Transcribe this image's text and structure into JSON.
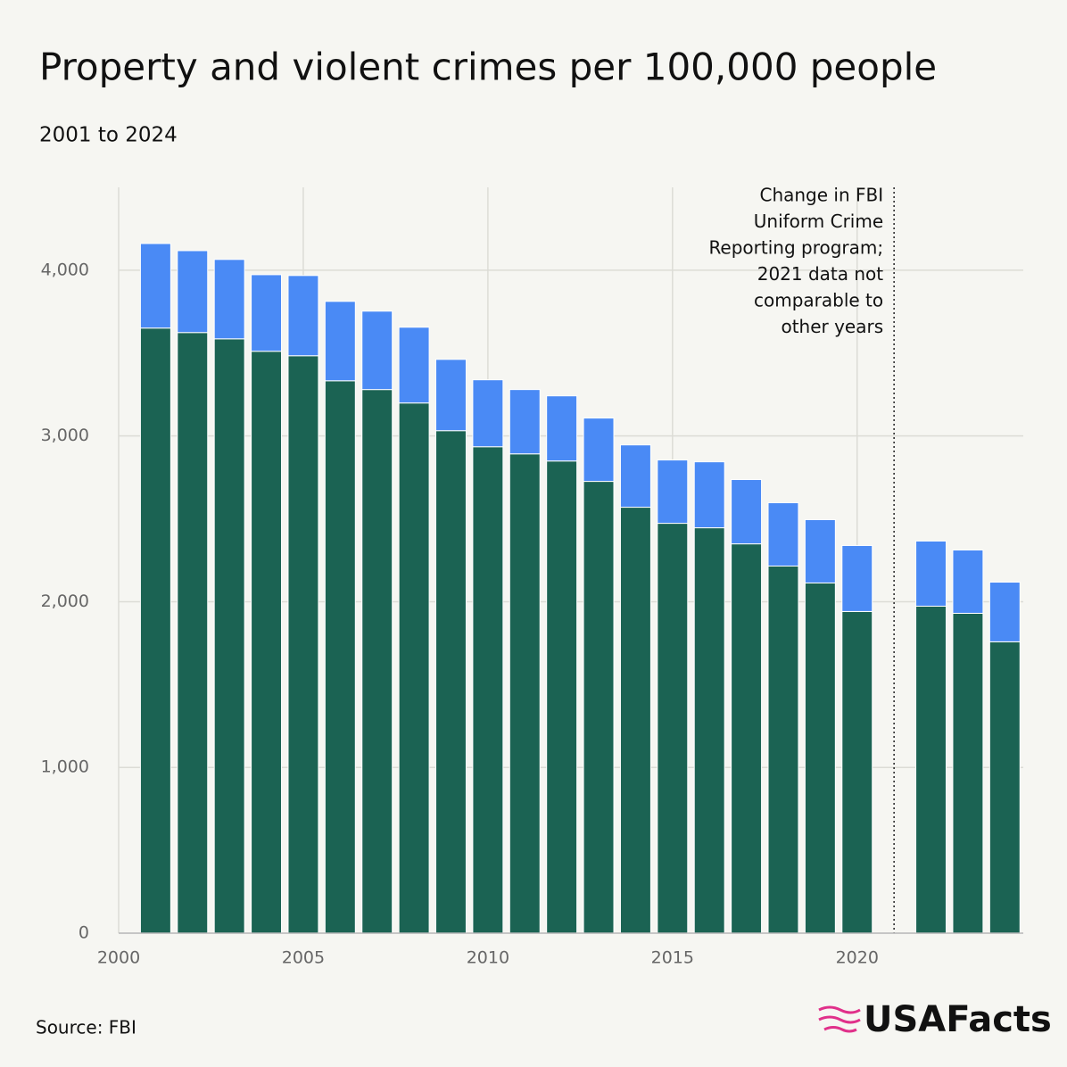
{
  "chart_data": {
    "type": "stacked-bar",
    "title": "Property and violent crimes per 100,000 people",
    "subtitle": "2001 to 2024",
    "x": [
      2001,
      2002,
      2003,
      2004,
      2005,
      2006,
      2007,
      2008,
      2009,
      2010,
      2011,
      2012,
      2013,
      2014,
      2015,
      2016,
      2017,
      2018,
      2019,
      2020,
      2021,
      2022,
      2023,
      2024
    ],
    "series": [
      {
        "color": "#1b6353",
        "values": [
          3651,
          3624,
          3586,
          3511,
          3484,
          3333,
          3280,
          3199,
          3032,
          2935,
          2892,
          2849,
          2726,
          2570,
          2473,
          2446,
          2349,
          2215,
          2113,
          1941,
          null,
          1973,
          1930,
          1758
        ]
      },
      {
        "color": "#4a8af5",
        "values": [
          510,
          494,
          479,
          462,
          484,
          479,
          473,
          457,
          430,
          404,
          388,
          393,
          382,
          376,
          382,
          398,
          388,
          382,
          382,
          398,
          null,
          393,
          382,
          360
        ]
      }
    ],
    "xlim": [
      2000,
      2024.5
    ],
    "xticks": [
      2000,
      2005,
      2010,
      2015,
      2020
    ],
    "ylim": [
      0,
      4500
    ],
    "yticks": [
      0,
      {
        "value": 1000,
        "label": "1,000"
      },
      {
        "value": 2000,
        "label": "2,000"
      },
      {
        "value": 3000,
        "label": "3,000"
      },
      {
        "value": 4000,
        "label": "4,000"
      }
    ],
    "grid": true,
    "reference_line_x": 2021,
    "annotation": [
      "Change in FBI",
      "Uniform Crime",
      "Reporting program;",
      "2021 data not",
      "comparable to",
      "other years"
    ],
    "source": "Source: FBI",
    "logo": "USAFacts"
  }
}
